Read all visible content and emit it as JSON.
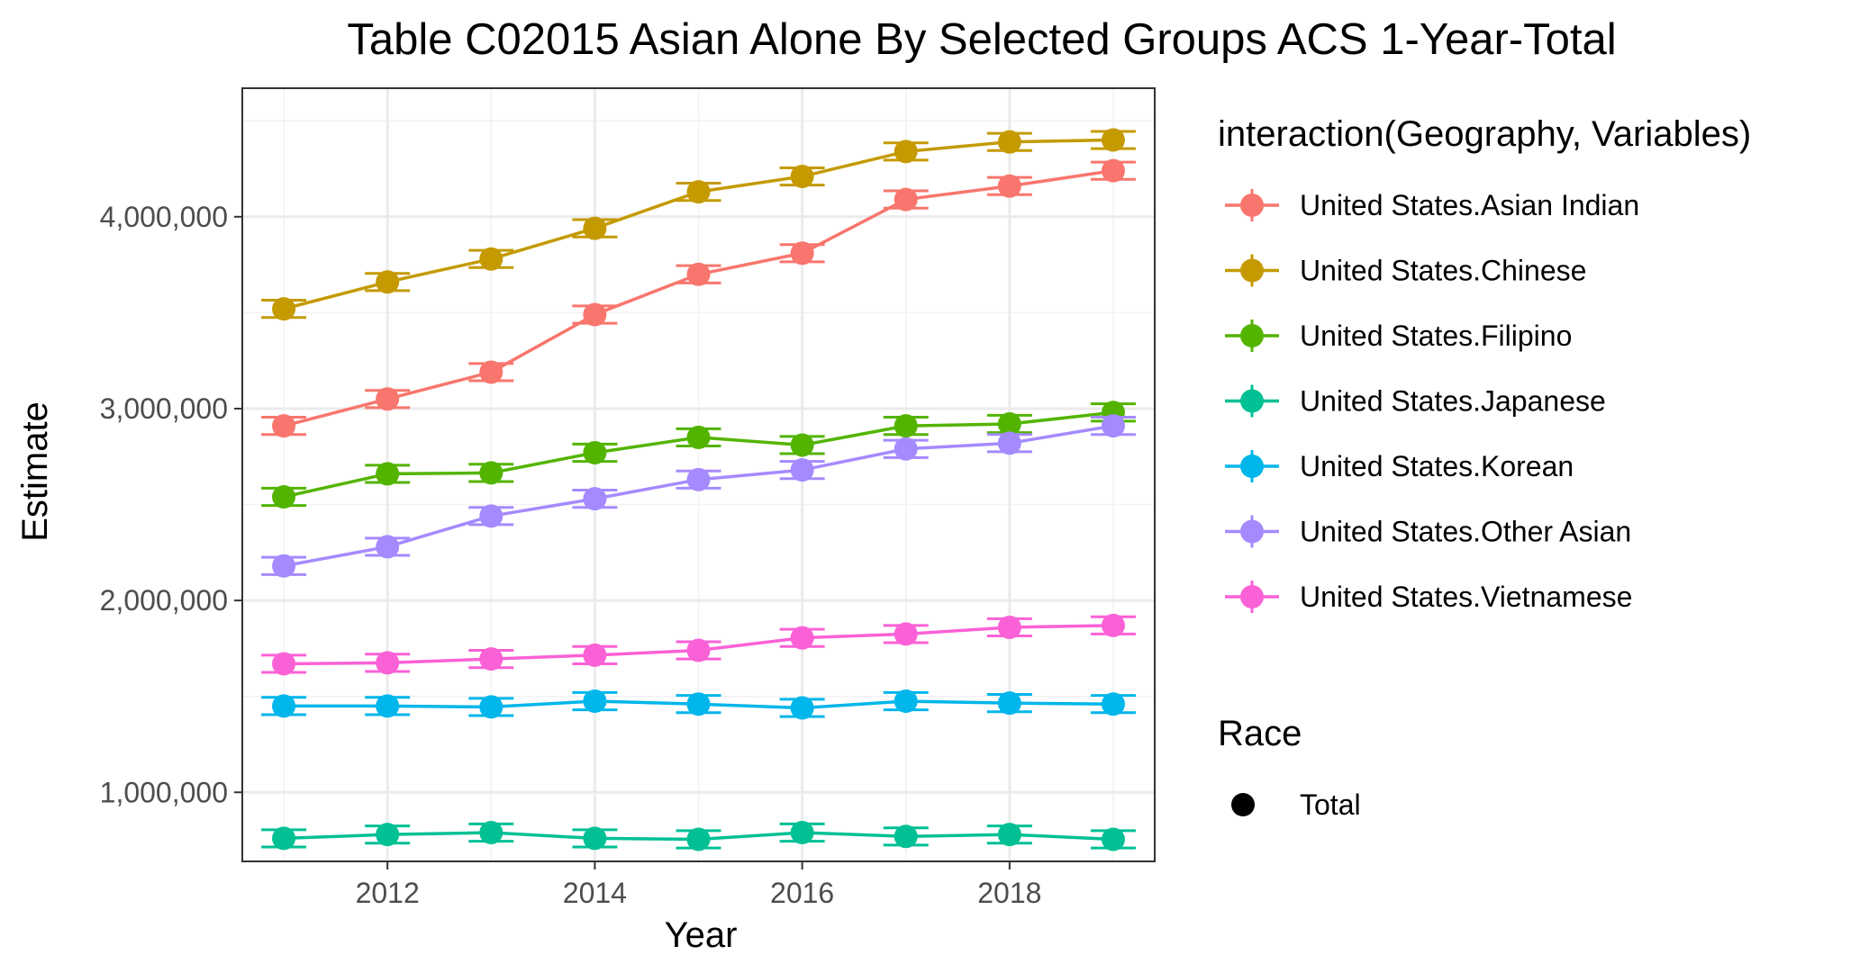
{
  "chart_data": {
    "type": "line",
    "title": "Table C02015 Asian Alone By Selected Groups ACS 1-Year-Total",
    "xlabel": "Year",
    "ylabel": "Estimate",
    "xlim": [
      2010.6,
      2019.4
    ],
    "ylim": [
      640000,
      4670000
    ],
    "x_ticks": [
      2012,
      2014,
      2016,
      2018
    ],
    "x_tick_labels": [
      "2012",
      "2014",
      "2016",
      "2018"
    ],
    "y_ticks": [
      1000000,
      2000000,
      3000000,
      4000000
    ],
    "y_tick_labels": [
      "1,000,000",
      "2,000,000",
      "3,000,000",
      "4,000,000"
    ],
    "grid": true,
    "error_bar_half_width": 45000,
    "legend_placement": "right",
    "legend_color_title": "interaction(Geography, Variables)",
    "legend_shape_title": "Race",
    "legend_shape_entries": [
      "Total"
    ],
    "x": [
      2011,
      2012,
      2013,
      2014,
      2015,
      2016,
      2017,
      2018,
      2019
    ],
    "series": [
      {
        "name": "United States.Asian Indian",
        "color": "#F8766D",
        "values": [
          2910000,
          3050000,
          3190000,
          3490000,
          3700000,
          3810000,
          4090000,
          4160000,
          4240000
        ]
      },
      {
        "name": "United States.Chinese",
        "color": "#C49A00",
        "values": [
          3520000,
          3660000,
          3780000,
          3940000,
          4130000,
          4210000,
          4340000,
          4390000,
          4400000
        ]
      },
      {
        "name": "United States.Filipino",
        "color": "#53B400",
        "values": [
          2540000,
          2660000,
          2665000,
          2770000,
          2850000,
          2810000,
          2910000,
          2920000,
          2980000
        ]
      },
      {
        "name": "United States.Japanese",
        "color": "#00C094",
        "values": [
          760000,
          780000,
          790000,
          760000,
          755000,
          790000,
          770000,
          780000,
          755000
        ]
      },
      {
        "name": "United States.Korean",
        "color": "#00B6EB",
        "values": [
          1450000,
          1450000,
          1445000,
          1475000,
          1460000,
          1440000,
          1475000,
          1465000,
          1460000
        ]
      },
      {
        "name": "United States.Other Asian",
        "color": "#A58AFF",
        "values": [
          2180000,
          2280000,
          2440000,
          2530000,
          2630000,
          2680000,
          2790000,
          2820000,
          2910000
        ]
      },
      {
        "name": "United States.Vietnamese",
        "color": "#FB61D7",
        "values": [
          1670000,
          1675000,
          1695000,
          1715000,
          1740000,
          1805000,
          1825000,
          1860000,
          1870000
        ]
      }
    ]
  }
}
